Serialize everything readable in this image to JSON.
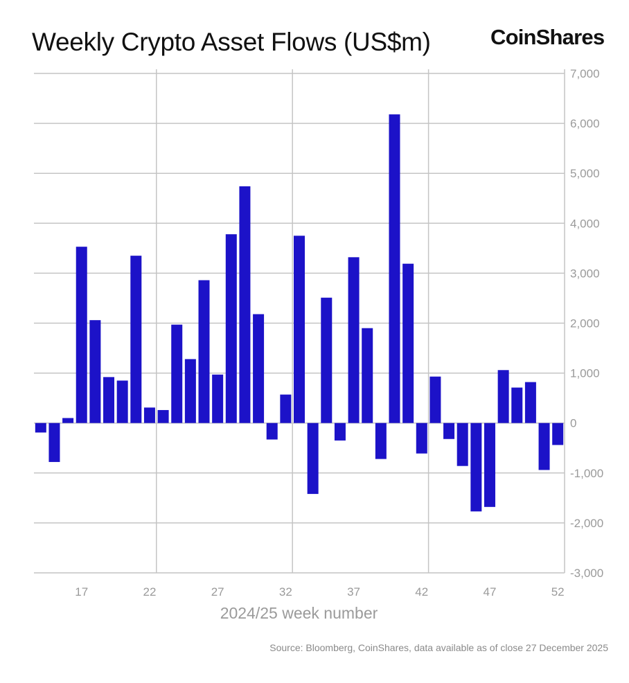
{
  "title": "Weekly Crypto Asset Flows (US$m)",
  "logo": "CoinShares",
  "source": "Source: Bloomberg, CoinShares, data available as of close 27 December 2025",
  "chart_data": {
    "type": "bar",
    "title": "Weekly Crypto Asset Flows (US$m)",
    "xlabel": "2024/25 week number",
    "ylabel": "",
    "x": [
      14,
      15,
      16,
      17,
      18,
      19,
      20,
      21,
      22,
      23,
      24,
      25,
      26,
      27,
      28,
      29,
      30,
      31,
      32,
      33,
      34,
      35,
      36,
      37,
      38,
      39,
      40,
      41,
      42,
      43,
      44,
      45,
      46,
      47,
      48,
      49,
      50,
      51,
      52
    ],
    "values": [
      -190,
      -780,
      100,
      3530,
      2060,
      920,
      850,
      3350,
      310,
      260,
      1970,
      1280,
      2860,
      970,
      3780,
      4740,
      2180,
      -330,
      570,
      3750,
      -1420,
      2510,
      -350,
      3320,
      1900,
      -720,
      6180,
      3190,
      -610,
      930,
      -320,
      -860,
      -1770,
      -1680,
      1060,
      710,
      820,
      -940,
      -440
    ],
    "xticks": [
      "17",
      "22",
      "27",
      "32",
      "37",
      "42",
      "47",
      "52"
    ],
    "xtick_values": [
      17,
      22,
      27,
      32,
      37,
      42,
      47,
      52
    ],
    "yticks": [
      "7,000",
      "6,000",
      "5,000",
      "4,000",
      "3,000",
      "2,000",
      "1,000",
      "0",
      "-1,000",
      "-2,000",
      "-3,000"
    ],
    "ytick_values": [
      7000,
      6000,
      5000,
      4000,
      3000,
      2000,
      1000,
      0,
      -1000,
      -2000,
      -3000
    ],
    "ylim": [
      -3000,
      7000
    ],
    "xlim": [
      13.5,
      52.5
    ],
    "y_axis_side": "right",
    "grid": true,
    "bar_color": "#1c12c8",
    "grid_color": "#c4c4c4"
  }
}
